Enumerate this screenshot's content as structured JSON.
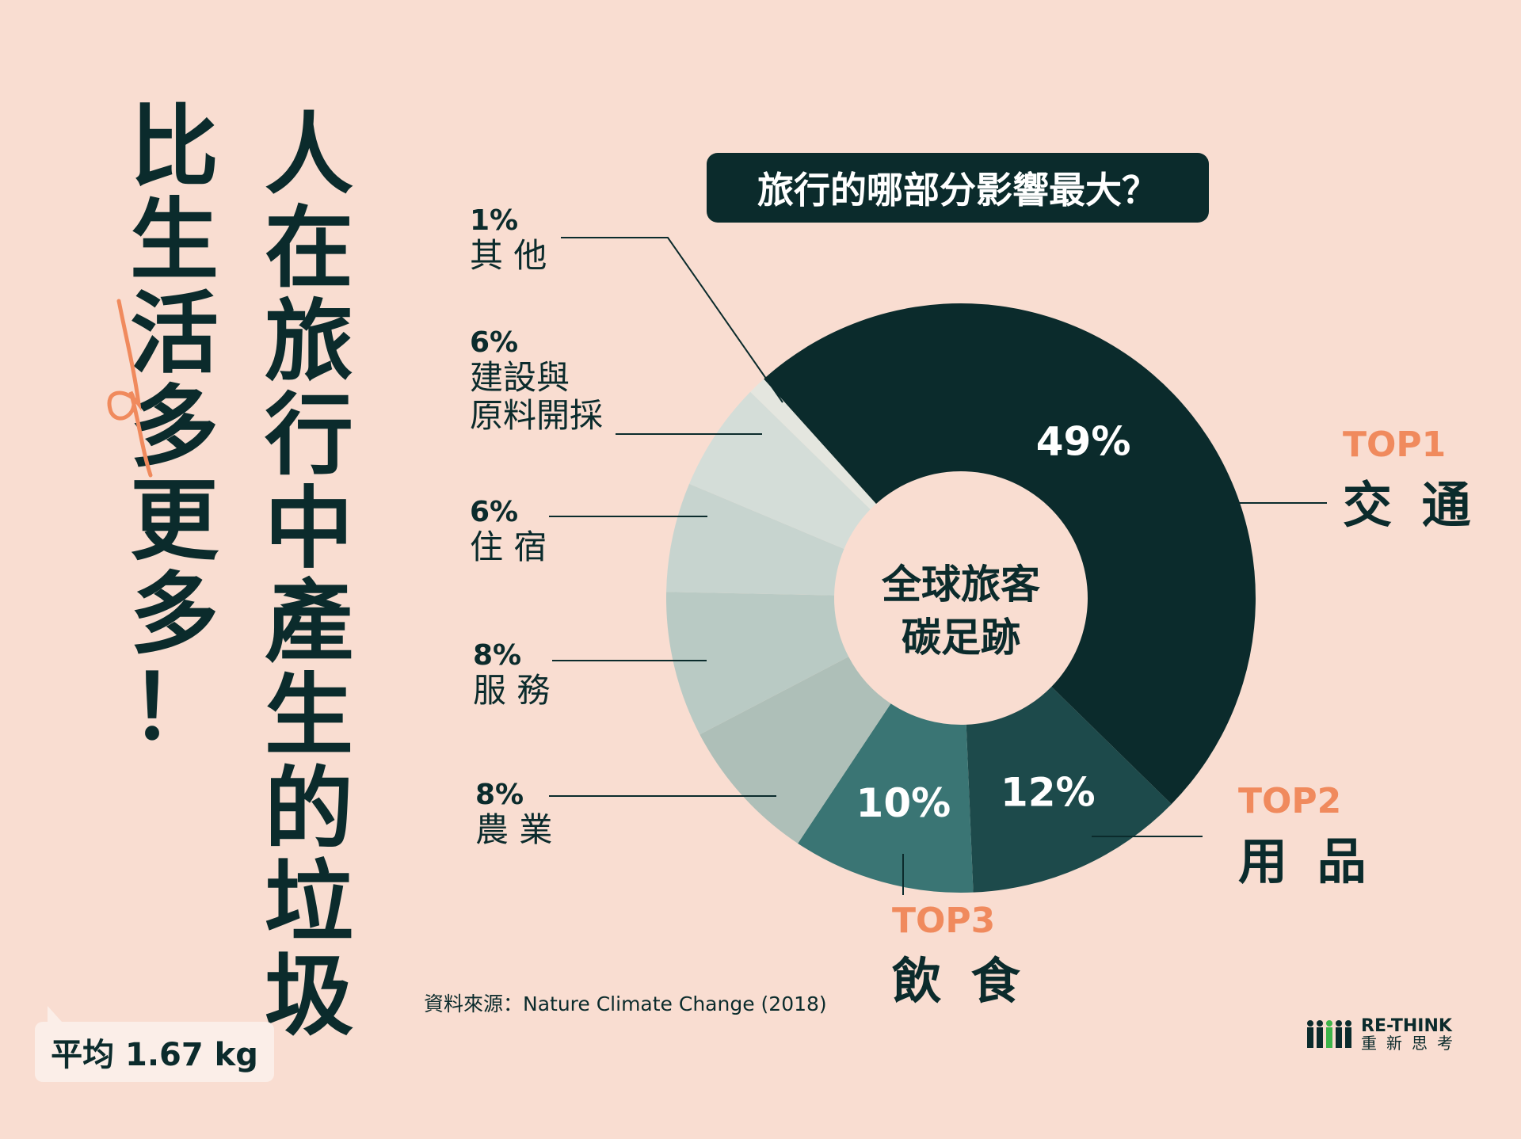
{
  "headline": {
    "column1": [
      "人",
      "在",
      "旅",
      "行",
      "中",
      "產",
      "生",
      "的",
      "垃",
      "圾"
    ],
    "column2": [
      "比",
      "生",
      "活",
      "多",
      "更",
      "多",
      "！"
    ]
  },
  "average_badge": "平均 1.67 kg",
  "question": "旅行的哪部分影響最大？",
  "center_label": [
    "全球旅客",
    "碳足跡"
  ],
  "source": "資料來源：Nature Climate Change (2018)",
  "logo": {
    "line1": "RE-THINK",
    "line2": "重新思考"
  },
  "colors": {
    "background": "#f9ddd1",
    "dark": "#0b2b2c",
    "accent": "#f08a5d"
  },
  "chart_data": {
    "type": "pie",
    "variant": "donut",
    "categories": [
      "交通",
      "用品",
      "飲食",
      "農業",
      "服務",
      "住宿",
      "建設與原料開採",
      "其他"
    ],
    "values": [
      49,
      12,
      10,
      8,
      8,
      6,
      6,
      1
    ],
    "value_labels": [
      "49%",
      "12%",
      "10%",
      "8%",
      "8%",
      "6%",
      "6%",
      "1%"
    ],
    "category_labels": [
      "交 通",
      "用 品",
      "飲 食",
      "農 業",
      "服 務",
      "住 宿",
      "建設與\n原料開採",
      "其 他"
    ],
    "ranks": [
      "TOP1",
      "TOP2",
      "TOP3"
    ],
    "colors": [
      "#0b2b2c",
      "#1d4a4b",
      "#3a7574",
      "#aebfb8",
      "#b9cac4",
      "#c7d4cf",
      "#d4ddd8",
      "#e4e6df"
    ]
  }
}
